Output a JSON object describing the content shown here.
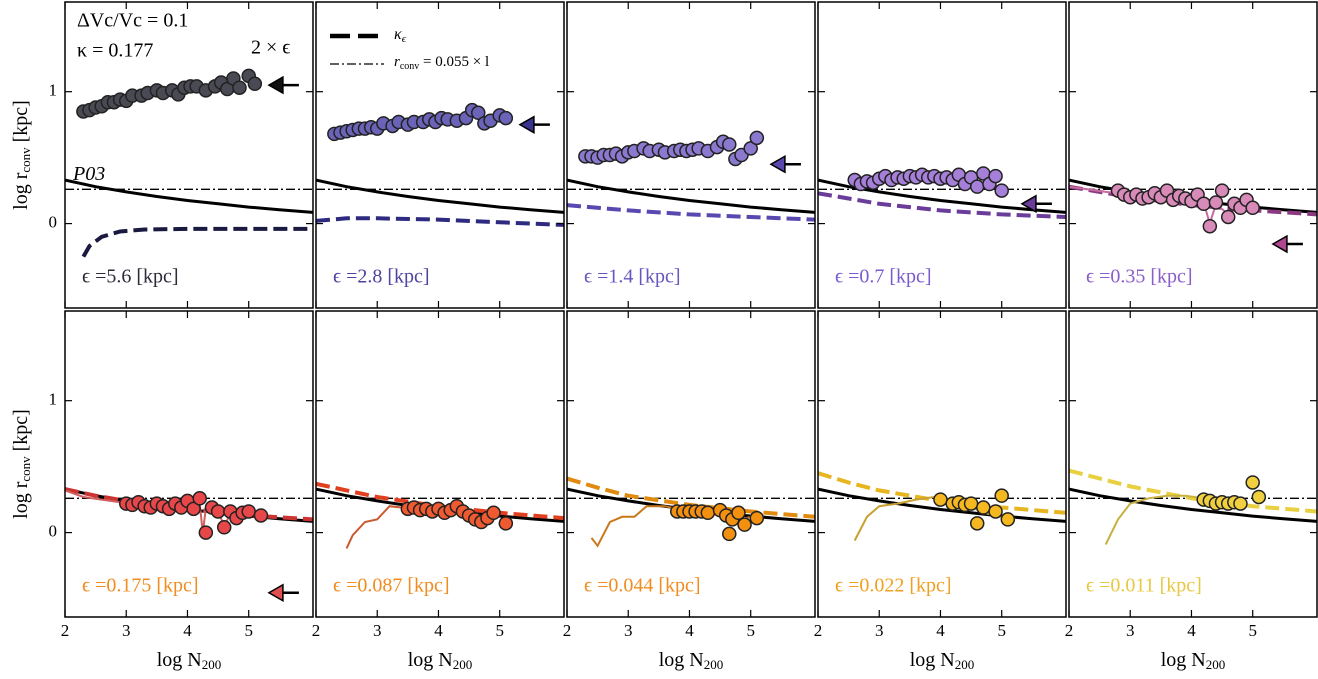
{
  "ylabel": {
    "main": "log r",
    "sub": "conv",
    "unit": " [kpc]"
  },
  "xlabel": {
    "main": "log N",
    "sub": "200"
  },
  "annotations": {
    "dv": "ΔVc/Vc = 0.1",
    "kappa": "κ = 0.177",
    "two_eps": "2 × ϵ",
    "p03": "P03"
  },
  "legend": [
    {
      "main": "κ",
      "sub": "ϵ"
    },
    {
      "main": "r",
      "sub": "conv",
      "rest": " = 0.055 × l"
    }
  ],
  "p03": {
    "x": [
      2,
      2.5,
      3,
      3.5,
      4,
      4.5,
      5,
      5.5,
      6.05
    ],
    "y": [
      0.33,
      0.28,
      0.24,
      0.205,
      0.175,
      0.15,
      0.125,
      0.105,
      0.085
    ]
  },
  "rconv_ref": 0.26,
  "chart_data": [
    {
      "type": "scatter",
      "label": "ϵ =5.6 [kpc]",
      "label_color": "#2b2b3a",
      "xlim": [
        2,
        6.05
      ],
      "ylim": [
        -0.64,
        1.68
      ],
      "xticks": [
        2,
        3,
        4,
        5
      ],
      "yticks": [
        0,
        1
      ],
      "arrow": {
        "y": 1.05,
        "color": "#111111"
      },
      "points": {
        "color": "#4a4a55",
        "x": [
          2.3,
          2.4,
          2.5,
          2.6,
          2.7,
          2.8,
          2.9,
          3.0,
          3.1,
          3.25,
          3.35,
          3.5,
          3.6,
          3.75,
          3.85,
          3.95,
          4.05,
          4.15,
          4.3,
          4.45,
          4.55,
          4.65,
          4.75,
          4.85,
          5.0,
          5.1
        ],
        "y": [
          0.85,
          0.86,
          0.88,
          0.89,
          0.92,
          0.92,
          0.94,
          0.93,
          0.97,
          0.97,
          0.99,
          1.01,
          0.99,
          1.01,
          0.98,
          1.03,
          1.04,
          1.04,
          1.01,
          1.04,
          1.07,
          1.02,
          1.1,
          1.03,
          1.12,
          1.06
        ]
      },
      "kappa_curve": {
        "color": "#1a1a40",
        "x": [
          2.3,
          2.4,
          2.6,
          2.9,
          3.3,
          4,
          5,
          6.05
        ],
        "y": [
          -0.25,
          -0.17,
          -0.1,
          -0.06,
          -0.045,
          -0.04,
          -0.04,
          -0.04
        ]
      }
    },
    {
      "type": "scatter",
      "label": "ϵ =2.8 [kpc]",
      "label_color": "#4d44a0",
      "xlim": [
        2,
        6.05
      ],
      "ylim": [
        -0.64,
        1.68
      ],
      "xticks": [
        2,
        3,
        4,
        5
      ],
      "yticks": [
        0,
        1
      ],
      "arrow": {
        "y": 0.75,
        "color": "#3a3490"
      },
      "points": {
        "color": "#6a63b8",
        "x": [
          2.3,
          2.4,
          2.5,
          2.6,
          2.7,
          2.8,
          2.9,
          3.0,
          3.1,
          3.25,
          3.35,
          3.5,
          3.6,
          3.75,
          3.85,
          3.95,
          4.05,
          4.15,
          4.3,
          4.45,
          4.55,
          4.65,
          4.75,
          4.85,
          5.0,
          5.1
        ],
        "y": [
          0.68,
          0.69,
          0.7,
          0.71,
          0.72,
          0.72,
          0.73,
          0.72,
          0.76,
          0.74,
          0.77,
          0.75,
          0.77,
          0.77,
          0.79,
          0.77,
          0.8,
          0.79,
          0.78,
          0.8,
          0.86,
          0.84,
          0.76,
          0.78,
          0.82,
          0.8
        ]
      },
      "kappa_curve": {
        "color": "#2e2a80",
        "x": [
          2,
          2.5,
          3,
          4,
          5,
          6.05
        ],
        "y": [
          0.02,
          0.04,
          0.04,
          0.03,
          0.01,
          -0.01
        ]
      }
    },
    {
      "type": "scatter",
      "label": "ϵ =1.4 [kpc]",
      "label_color": "#6655c0",
      "xlim": [
        2,
        6.05
      ],
      "ylim": [
        -0.64,
        1.68
      ],
      "xticks": [
        2,
        3,
        4,
        5
      ],
      "yticks": [
        0,
        1
      ],
      "arrow": {
        "y": 0.45,
        "color": "#5a48b0"
      },
      "points": {
        "color": "#8b79d0",
        "x": [
          2.3,
          2.4,
          2.5,
          2.6,
          2.7,
          2.8,
          2.9,
          3.0,
          3.1,
          3.25,
          3.35,
          3.5,
          3.6,
          3.75,
          3.85,
          3.95,
          4.05,
          4.15,
          4.3,
          4.45,
          4.55,
          4.65,
          4.75,
          4.85,
          5.0,
          5.1
        ],
        "y": [
          0.51,
          0.51,
          0.5,
          0.52,
          0.52,
          0.53,
          0.51,
          0.54,
          0.55,
          0.57,
          0.55,
          0.56,
          0.54,
          0.55,
          0.56,
          0.55,
          0.56,
          0.57,
          0.55,
          0.58,
          0.62,
          0.6,
          0.49,
          0.52,
          0.57,
          0.65
        ]
      },
      "kappa_curve": {
        "color": "#5a48b0",
        "x": [
          2,
          2.5,
          3,
          4,
          5,
          6.05
        ],
        "y": [
          0.14,
          0.12,
          0.1,
          0.07,
          0.05,
          0.03
        ]
      }
    },
    {
      "type": "scatter",
      "label": "ϵ =0.7 [kpc]",
      "label_color": "#7a5ad0",
      "xlim": [
        2,
        6.05
      ],
      "ylim": [
        -0.64,
        1.68
      ],
      "xticks": [
        2,
        3,
        4,
        5
      ],
      "yticks": [
        0,
        1
      ],
      "arrow": {
        "y": 0.15,
        "color": "#6a3d9a"
      },
      "points": {
        "color": "#a57fd8",
        "x": [
          2.6,
          2.7,
          2.8,
          2.9,
          3.0,
          3.1,
          3.2,
          3.3,
          3.4,
          3.5,
          3.6,
          3.7,
          3.8,
          3.9,
          4.0,
          4.1,
          4.2,
          4.3,
          4.4,
          4.5,
          4.6,
          4.7,
          4.8,
          4.9,
          5.0
        ],
        "y": [
          0.33,
          0.3,
          0.32,
          0.31,
          0.34,
          0.36,
          0.33,
          0.35,
          0.34,
          0.36,
          0.35,
          0.37,
          0.35,
          0.36,
          0.34,
          0.35,
          0.33,
          0.37,
          0.3,
          0.35,
          0.28,
          0.38,
          0.3,
          0.36,
          0.25
        ]
      },
      "kappa_curve": {
        "color": "#6a3d9a",
        "x": [
          2,
          2.5,
          3,
          4,
          5,
          6.05
        ],
        "y": [
          0.23,
          0.19,
          0.15,
          0.1,
          0.07,
          0.05
        ]
      }
    },
    {
      "type": "scatter",
      "label": "ϵ =0.35 [kpc]",
      "label_color": "#8a5dc8",
      "xlim": [
        2,
        6.05
      ],
      "ylim": [
        -0.64,
        1.68
      ],
      "xticks": [
        2,
        3,
        4,
        5
      ],
      "yticks": [
        0,
        1
      ],
      "arrow": {
        "y": -0.155,
        "color": "#b04590"
      },
      "points": {
        "color": "#d88ab8",
        "x": [
          2.8,
          2.9,
          3.0,
          3.1,
          3.2,
          3.3,
          3.4,
          3.5,
          3.6,
          3.7,
          3.8,
          3.9,
          4.0,
          4.1,
          4.2,
          4.3,
          4.4,
          4.5,
          4.6,
          4.7,
          4.8,
          4.9,
          5.0
        ],
        "y": [
          0.25,
          0.22,
          0.2,
          0.22,
          0.19,
          0.2,
          0.23,
          0.2,
          0.25,
          0.18,
          0.21,
          0.19,
          0.17,
          0.22,
          0.15,
          -0.02,
          0.16,
          0.25,
          0.05,
          0.15,
          0.12,
          0.18,
          0.12
        ]
      },
      "trace": {
        "color": "#c66aa0",
        "x": [
          2.0,
          2.3,
          2.6,
          2.8,
          3.2,
          3.6,
          4.0,
          4.2,
          4.3,
          4.4,
          4.6,
          4.8,
          5.0
        ],
        "y": [
          0.28,
          0.26,
          0.24,
          0.23,
          0.2,
          0.22,
          0.17,
          0.16,
          0.0,
          0.15,
          0.07,
          0.13,
          0.12
        ]
      },
      "kappa_curve": {
        "color": "#8c3a80",
        "x": [
          2,
          2.5,
          3,
          4,
          5,
          6.05
        ],
        "y": [
          0.28,
          0.24,
          0.2,
          0.14,
          0.1,
          0.07
        ]
      }
    },
    {
      "type": "scatter",
      "label": "ϵ =0.175 [kpc]",
      "label_color": "#f08c20",
      "xlim": [
        2,
        6.05
      ],
      "ylim": [
        -0.64,
        1.68
      ],
      "xticks": [
        2,
        3,
        4,
        5
      ],
      "yticks": [
        0,
        1
      ],
      "arrow": {
        "y": -0.456,
        "color": "#e05050"
      },
      "points": {
        "color": "#e8474a",
        "x": [
          3.0,
          3.1,
          3.2,
          3.3,
          3.4,
          3.5,
          3.6,
          3.7,
          3.8,
          3.9,
          4.0,
          4.1,
          4.2,
          4.3,
          4.4,
          4.5,
          4.6,
          4.7,
          4.8,
          4.9,
          5.0,
          5.2
        ],
        "y": [
          0.22,
          0.21,
          0.23,
          0.2,
          0.19,
          0.22,
          0.2,
          0.18,
          0.22,
          0.19,
          0.24,
          0.18,
          0.26,
          0.0,
          0.19,
          0.16,
          0.04,
          0.16,
          0.11,
          0.15,
          0.16,
          0.13
        ]
      },
      "trace": {
        "color": "#d06060",
        "x": [
          2.0,
          2.3,
          2.6,
          2.9,
          3.2,
          3.6,
          4.0,
          4.2,
          4.25,
          4.3,
          4.5,
          4.6,
          4.7,
          5.0
        ],
        "y": [
          0.32,
          0.27,
          0.25,
          0.23,
          0.22,
          0.2,
          0.21,
          0.22,
          0.0,
          0.18,
          0.16,
          0.05,
          0.14,
          0.14
        ]
      },
      "kappa_curve": {
        "color": "#cc3333",
        "x": [
          2,
          2.5,
          3,
          4,
          5,
          6.05
        ],
        "y": [
          0.33,
          0.28,
          0.24,
          0.18,
          0.13,
          0.1
        ]
      }
    },
    {
      "type": "scatter",
      "label": "ϵ =0.087 [kpc]",
      "label_color": "#f08c20",
      "xlim": [
        2,
        6.05
      ],
      "ylim": [
        -0.64,
        1.68
      ],
      "xticks": [
        2,
        3,
        4,
        5
      ],
      "yticks": [
        0,
        1
      ],
      "points": {
        "color": "#f05a30",
        "x": [
          3.5,
          3.6,
          3.7,
          3.8,
          3.9,
          4.0,
          4.1,
          4.2,
          4.3,
          4.4,
          4.5,
          4.6,
          4.7,
          4.8,
          4.9,
          5.1
        ],
        "y": [
          0.18,
          0.19,
          0.17,
          0.18,
          0.16,
          0.18,
          0.15,
          0.17,
          0.2,
          0.16,
          0.13,
          0.1,
          0.08,
          0.11,
          0.15,
          0.07
        ]
      },
      "trace": {
        "color": "#c85a30",
        "x": [
          2.5,
          2.6,
          2.8,
          3.0,
          3.2,
          3.4,
          3.6,
          4.0,
          4.4,
          4.6,
          4.8,
          5.0
        ],
        "y": [
          -0.12,
          -0.02,
          0.08,
          0.1,
          0.2,
          0.19,
          0.18,
          0.17,
          0.16,
          0.1,
          0.12,
          0.12
        ]
      },
      "kappa_curve": {
        "color": "#e04020",
        "x": [
          2,
          2.5,
          3,
          4,
          5,
          6.05
        ],
        "y": [
          0.37,
          0.32,
          0.27,
          0.2,
          0.15,
          0.11
        ]
      }
    },
    {
      "type": "scatter",
      "label": "ϵ =0.044 [kpc]",
      "label_color": "#f08c20",
      "xlim": [
        2,
        6.05
      ],
      "ylim": [
        -0.64,
        1.68
      ],
      "xticks": [
        2,
        3,
        4,
        5
      ],
      "yticks": [
        0,
        1
      ],
      "points": {
        "color": "#f39010",
        "x": [
          3.8,
          3.9,
          4.0,
          4.1,
          4.2,
          4.3,
          4.5,
          4.6,
          4.65,
          4.7,
          4.8,
          4.9,
          5.1
        ],
        "y": [
          0.16,
          0.16,
          0.16,
          0.16,
          0.16,
          0.15,
          0.17,
          0.13,
          -0.01,
          0.1,
          0.15,
          0.06,
          0.11
        ]
      },
      "trace": {
        "color": "#c8781a",
        "x": [
          2.4,
          2.5,
          2.7,
          2.9,
          3.1,
          3.3,
          3.6,
          3.9,
          4.2,
          4.5,
          4.7,
          5.0
        ],
        "y": [
          -0.04,
          -0.1,
          0.08,
          0.12,
          0.12,
          0.2,
          0.2,
          0.17,
          0.16,
          0.13,
          0.08,
          0.12
        ]
      },
      "kappa_curve": {
        "color": "#e08a10",
        "x": [
          2,
          2.5,
          3,
          4,
          5,
          6.05
        ],
        "y": [
          0.41,
          0.34,
          0.28,
          0.21,
          0.16,
          0.12
        ]
      }
    },
    {
      "type": "scatter",
      "label": "ϵ =0.022 [kpc]",
      "label_color": "#f0a020",
      "xlim": [
        2,
        6.05
      ],
      "ylim": [
        -0.64,
        1.68
      ],
      "xticks": [
        2,
        3,
        4,
        5
      ],
      "yticks": [
        0,
        1
      ],
      "points": {
        "color": "#f5b820",
        "x": [
          4.0,
          4.2,
          4.3,
          4.4,
          4.5,
          4.6,
          4.7,
          4.9,
          5.0,
          5.1
        ],
        "y": [
          0.25,
          0.22,
          0.23,
          0.21,
          0.22,
          0.07,
          0.19,
          0.16,
          0.28,
          0.1
        ]
      },
      "trace": {
        "color": "#c8a030",
        "x": [
          2.6,
          2.8,
          3.0,
          3.3,
          3.6,
          3.9,
          4.2,
          4.5,
          4.7,
          5.0
        ],
        "y": [
          -0.06,
          0.12,
          0.2,
          0.22,
          0.25,
          0.27,
          0.23,
          0.2,
          0.15,
          0.12
        ]
      },
      "kappa_curve": {
        "color": "#e6b520",
        "x": [
          2,
          2.5,
          3,
          4,
          5,
          6.05
        ],
        "y": [
          0.45,
          0.38,
          0.32,
          0.24,
          0.19,
          0.15
        ]
      }
    },
    {
      "type": "scatter",
      "label": "ϵ =0.011 [kpc]",
      "label_color": "#e8c840",
      "xlim": [
        2,
        6.05
      ],
      "ylim": [
        -0.64,
        1.68
      ],
      "xticks": [
        2,
        3,
        4,
        5
      ],
      "yticks": [
        0,
        1
      ],
      "points": {
        "color": "#f0d040",
        "x": [
          4.2,
          4.3,
          4.4,
          4.5,
          4.6,
          4.7,
          4.8,
          5.0,
          5.1
        ],
        "y": [
          0.25,
          0.24,
          0.22,
          0.23,
          0.22,
          0.23,
          0.22,
          0.38,
          0.27
        ]
      },
      "trace": {
        "color": "#c8b040",
        "x": [
          2.6,
          2.8,
          3.0,
          3.3,
          3.6,
          3.9,
          4.2,
          4.5,
          4.8
        ],
        "y": [
          -0.09,
          0.1,
          0.22,
          0.26,
          0.28,
          0.28,
          0.26,
          0.24,
          0.23
        ]
      },
      "kappa_curve": {
        "color": "#e8d040",
        "x": [
          2,
          2.5,
          3,
          4,
          5,
          6.05
        ],
        "y": [
          0.47,
          0.41,
          0.35,
          0.26,
          0.2,
          0.16
        ]
      }
    }
  ]
}
